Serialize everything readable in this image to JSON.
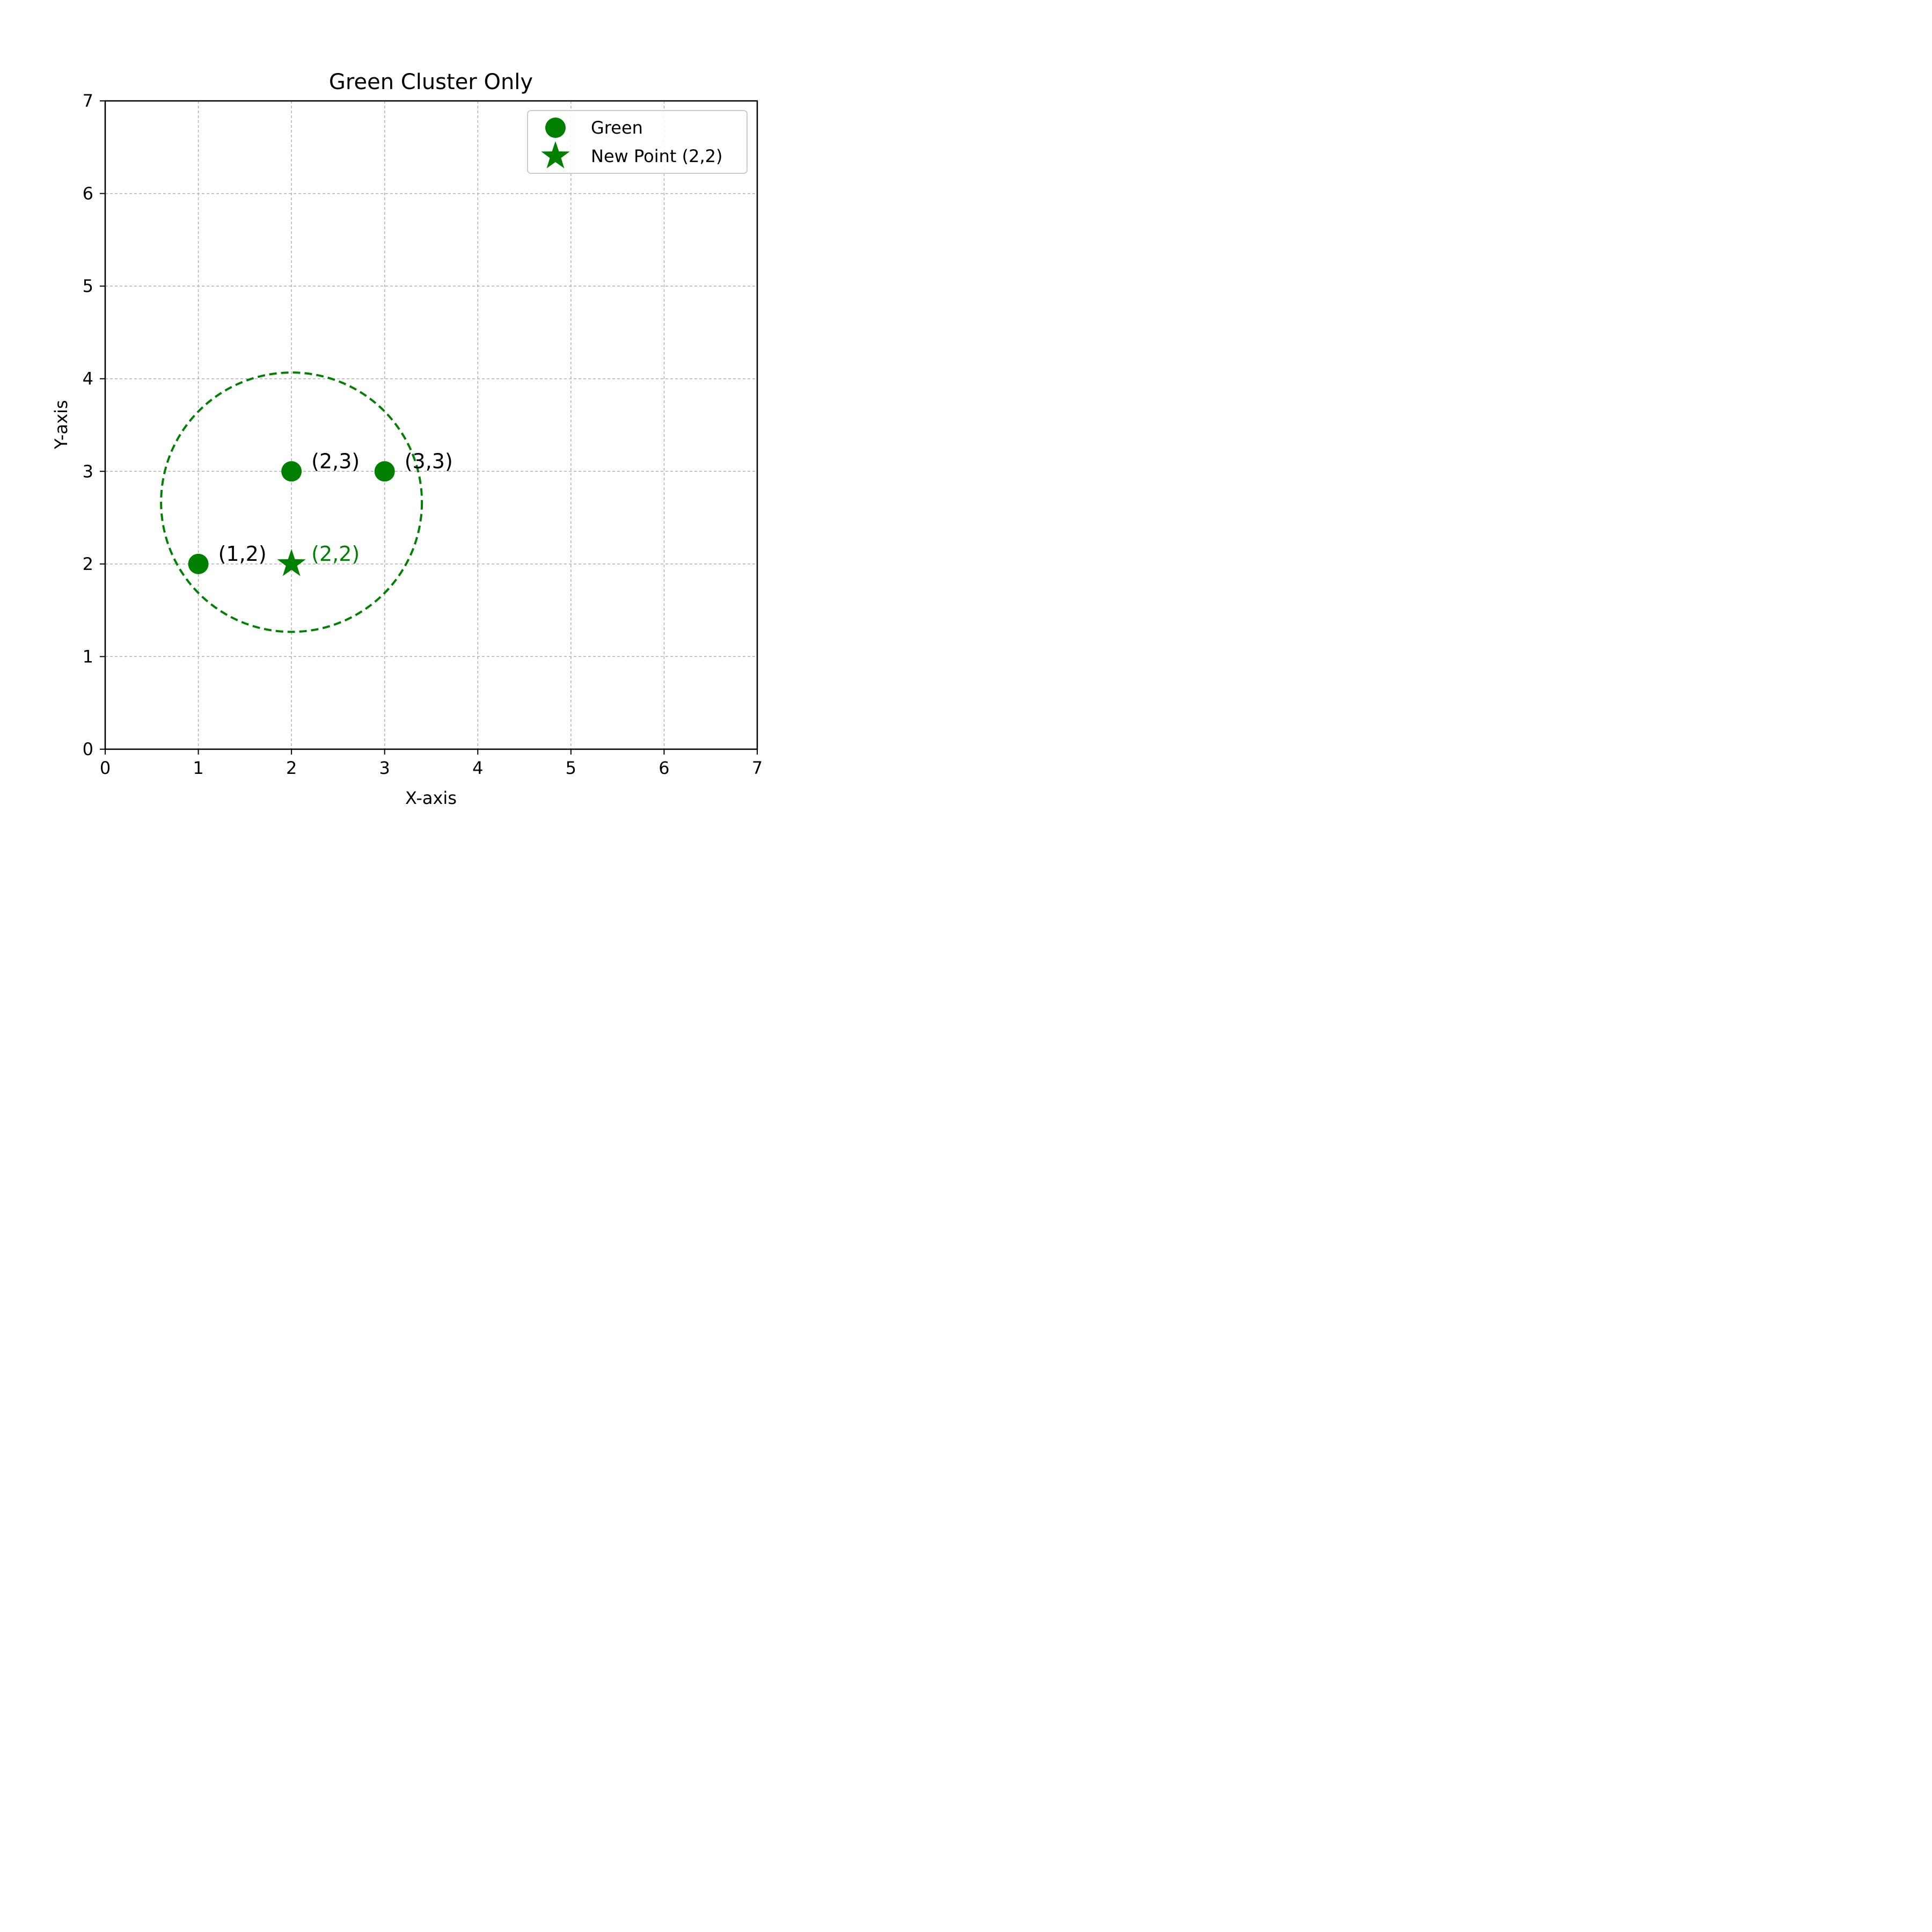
{
  "chart_data": {
    "type": "scatter",
    "title": "Green Cluster Only",
    "xlabel": "X-axis",
    "ylabel": "Y-axis",
    "xlim": [
      0,
      7
    ],
    "ylim": [
      0,
      7
    ],
    "xticks": [
      0,
      1,
      2,
      3,
      4,
      5,
      6,
      7
    ],
    "yticks": [
      0,
      1,
      2,
      3,
      4,
      5,
      6,
      7
    ],
    "grid": true,
    "legend_position": "top-right",
    "series": [
      {
        "name": "Green",
        "marker": "circle",
        "color": "#008000",
        "points": [
          {
            "x": 1,
            "y": 2,
            "label": "(1,2)"
          },
          {
            "x": 2,
            "y": 3,
            "label": "(2,3)"
          },
          {
            "x": 3,
            "y": 3,
            "label": "(3,3)"
          }
        ]
      },
      {
        "name": "New Point (2,2)",
        "marker": "star",
        "color": "#008000",
        "points": [
          {
            "x": 2,
            "y": 2,
            "label": "(2,2)"
          }
        ]
      }
    ],
    "cluster_circle": {
      "center": [
        2,
        2.667
      ],
      "radius": 1.4,
      "color": "#008000",
      "style": "dashed"
    }
  }
}
